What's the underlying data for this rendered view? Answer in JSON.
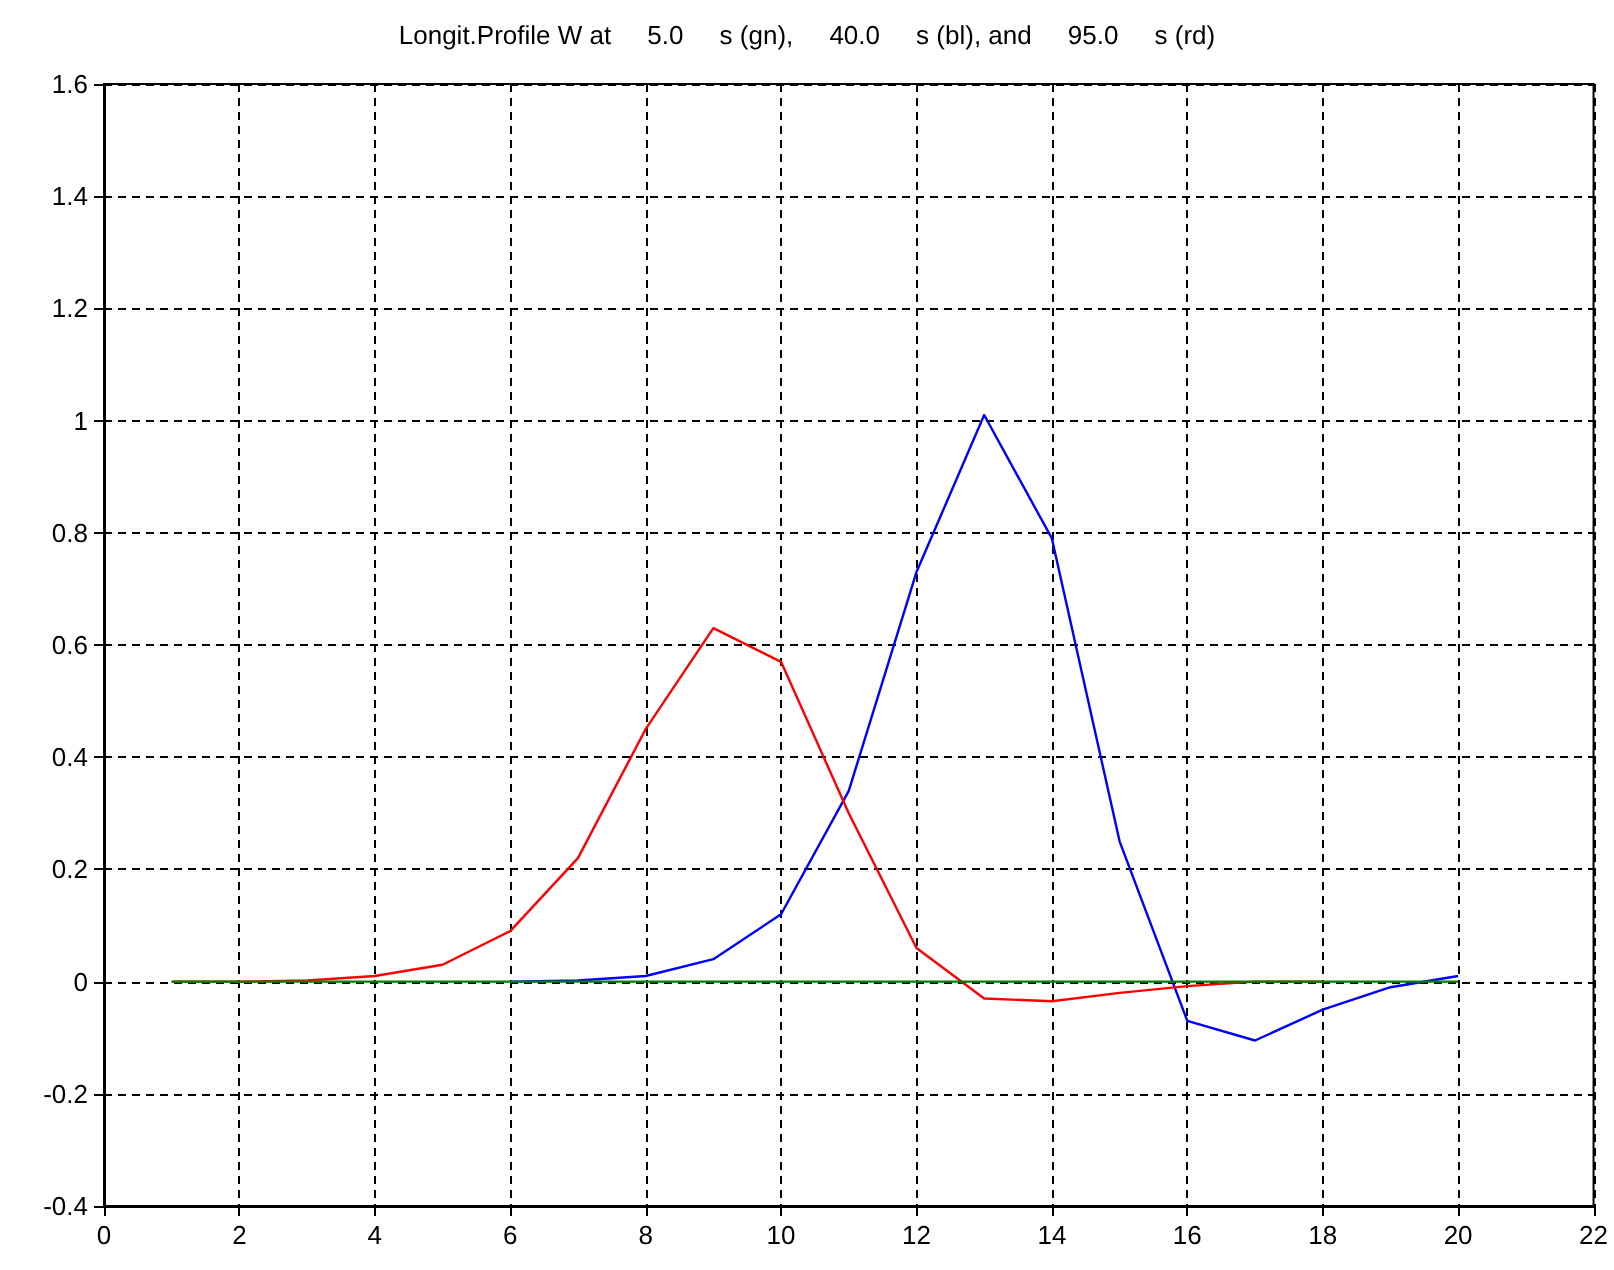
{
  "chart_data": {
    "type": "line",
    "title": "Longit.Profile W at     5.0     s (gn),     40.0     s (bl), and     95.0     s (rd)",
    "x": [
      1,
      2,
      3,
      4,
      5,
      6,
      7,
      8,
      9,
      10,
      11,
      12,
      13,
      14,
      15,
      16,
      17,
      18,
      19,
      20
    ],
    "series": [
      {
        "color": "#0000ff",
        "values": [
          null,
          null,
          null,
          null,
          null,
          0,
          0.002,
          0.01,
          0.04,
          0.12,
          0.34,
          0.73,
          1.01,
          0.79,
          0.25,
          -0.07,
          -0.105,
          -0.05,
          -0.01,
          0.01
        ]
      },
      {
        "color": "#ff0000",
        "values": [
          0,
          0,
          0.002,
          0.01,
          0.03,
          0.09,
          0.22,
          0.45,
          0.63,
          0.57,
          0.3,
          0.06,
          -0.03,
          -0.035,
          -0.02,
          -0.008,
          0,
          0,
          null,
          null
        ]
      },
      {
        "color": "#008000",
        "values": [
          0,
          0,
          0,
          0,
          0,
          0,
          0,
          0,
          0,
          0,
          0,
          0,
          0,
          0,
          0,
          0,
          0,
          0,
          0,
          0
        ]
      }
    ],
    "xlim": [
      0,
      22
    ],
    "xticks": [
      0,
      2,
      4,
      6,
      8,
      10,
      12,
      14,
      16,
      18,
      20,
      22
    ],
    "ylim": [
      -0.4,
      1.6
    ],
    "yticks": [
      -0.4,
      -0.2,
      0,
      0.2,
      0.4,
      0.6,
      0.8,
      1,
      1.2,
      1.4,
      1.6
    ],
    "grid": true,
    "marker": "none",
    "line_style": "solid"
  }
}
